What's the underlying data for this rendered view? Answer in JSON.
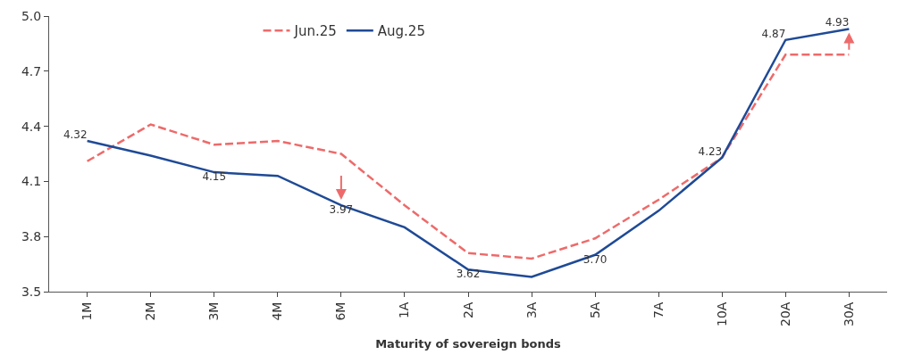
{
  "chart_data": {
    "type": "line",
    "xlabel": "Maturity of sovereign bonds",
    "categories": [
      "1M",
      "2M",
      "3M",
      "4M",
      "6M",
      "1A",
      "2A",
      "3A",
      "5A",
      "7A",
      "10A",
      "20A",
      "30A"
    ],
    "series": [
      {
        "name": "Jun.25",
        "color": "#ee6a6a",
        "line_style": "dashed",
        "values": [
          4.21,
          4.41,
          4.3,
          4.32,
          4.25,
          3.97,
          3.71,
          3.68,
          3.79,
          4.0,
          4.23,
          4.79,
          4.79
        ]
      },
      {
        "name": "Aug.25",
        "color": "#1f4a96",
        "line_style": "solid",
        "values": [
          4.32,
          4.24,
          4.15,
          4.13,
          3.97,
          3.85,
          3.62,
          3.58,
          3.7,
          3.94,
          4.23,
          4.87,
          4.93
        ],
        "value_labels": [
          "4.32",
          null,
          "4.15",
          null,
          "3.97",
          null,
          "3.62",
          null,
          "3.70",
          null,
          "4.23",
          "4.87",
          "4.93"
        ]
      }
    ],
    "ylim": [
      3.5,
      5.0
    ],
    "yticks": [
      "3.5",
      "3.8",
      "4.1",
      "4.4",
      "4.7",
      "5.0"
    ],
    "legend": "top",
    "marker": "none"
  }
}
